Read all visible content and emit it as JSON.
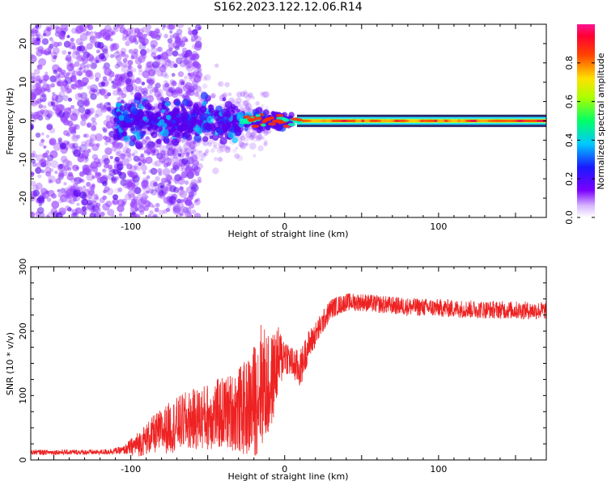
{
  "title": "S162.2023.122.12.06.R14",
  "colors": {
    "snr_line": "#ee2222",
    "scatter_sparse": "#9a44ff",
    "scatter_dense": "#5500ee",
    "band_core": "#ee1144"
  },
  "chart_data": [
    {
      "type": "heatmap",
      "xlabel": "Height of straight line (km)",
      "ylabel": "Frequency (Hz)",
      "xlim": [
        -165,
        170
      ],
      "ylim": [
        -25,
        25
      ],
      "xticks": [
        -100,
        0,
        100
      ],
      "yticks": [
        -20,
        -10,
        0,
        10,
        20
      ],
      "colorbar": {
        "label": "Normalized spectral amplitude",
        "range": [
          0,
          1
        ],
        "ticks": [
          "0.0",
          "0.2",
          "0.4",
          "0.6",
          "0.8"
        ],
        "colormap": "rainbow (purple→blue→cyan→green→yellow→red→magenta)"
      },
      "description_segments": [
        {
          "x_range": [
            -165,
            -110
          ],
          "freq_spread": [
            -25,
            25
          ],
          "amplitude": "low"
        },
        {
          "x_range": [
            -110,
            -30
          ],
          "freq_spread": [
            -5,
            5
          ],
          "amplitude": "medium"
        },
        {
          "x_range": [
            -30,
            10
          ],
          "freq_spread": [
            -2,
            2
          ],
          "amplitude": "medium-high"
        },
        {
          "x_range": [
            10,
            170
          ],
          "freq_spread": [
            -1,
            1
          ],
          "amplitude": "high",
          "center_freq": 0
        }
      ]
    },
    {
      "type": "line",
      "xlabel": "Height of straight line (km)",
      "ylabel": "SNR (10 * v/v)",
      "xlim": [
        -165,
        170
      ],
      "ylim": [
        0,
        300
      ],
      "xticks": [
        -100,
        0,
        100
      ],
      "yticks": [
        0,
        100,
        200,
        300
      ],
      "series": [
        {
          "x": [
            -165,
            -140,
            -120,
            -105,
            -95,
            -85,
            -75,
            -65,
            -55,
            -45,
            -35,
            -25,
            -20,
            -15,
            -10,
            -5,
            0,
            5,
            10,
            15,
            20,
            25,
            30,
            40,
            50,
            60,
            80,
            100,
            120,
            140,
            160,
            170
          ],
          "mean": [
            12,
            12,
            12,
            15,
            25,
            40,
            50,
            60,
            65,
            70,
            75,
            80,
            90,
            120,
            110,
            150,
            165,
            150,
            140,
            175,
            195,
            215,
            235,
            245,
            245,
            242,
            238,
            236,
            234,
            233,
            232,
            232
          ],
          "noise": [
            4,
            4,
            4,
            6,
            20,
            30,
            40,
            45,
            50,
            55,
            60,
            75,
            90,
            100,
            80,
            60,
            30,
            25,
            30,
            25,
            20,
            18,
            16,
            14,
            14,
            14,
            14,
            14,
            14,
            14,
            14,
            14
          ]
        }
      ]
    }
  ]
}
